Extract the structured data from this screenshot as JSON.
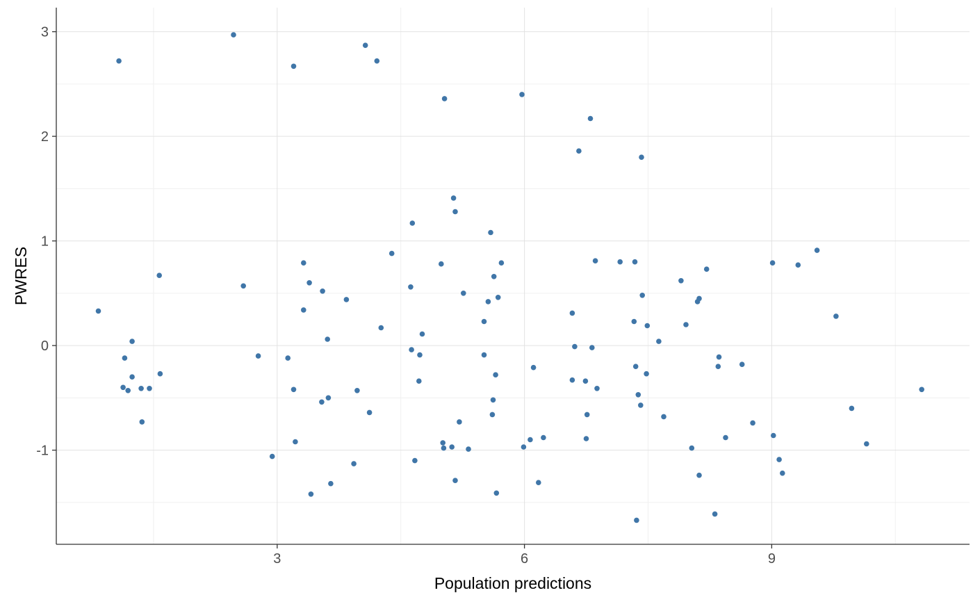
{
  "chart_data": {
    "type": "scatter",
    "title": "",
    "xlabel": "Population predictions",
    "ylabel": "PWRES",
    "xlim": [
      0.32,
      11.4
    ],
    "ylim": [
      -1.9,
      3.23
    ],
    "grid": true,
    "legend": false,
    "x_major_ticks": [
      {
        "v": 3,
        "label": "3"
      },
      {
        "v": 6,
        "label": "6"
      },
      {
        "v": 9,
        "label": "9"
      }
    ],
    "x_minor_ticks": [
      1.5,
      4.5,
      7.5,
      10.5
    ],
    "y_major_ticks": [
      {
        "v": -1,
        "label": "-1"
      },
      {
        "v": 0,
        "label": "0"
      },
      {
        "v": 1,
        "label": "1"
      },
      {
        "v": 2,
        "label": "2"
      },
      {
        "v": 3,
        "label": "3"
      }
    ],
    "y_minor_ticks": [
      -1.5,
      -0.5,
      0.5,
      1.5,
      2.5
    ],
    "styles": {
      "point_color": "#4076a8",
      "major_grid_color": "#e2e2e2",
      "minor_grid_color": "#f0f0f0",
      "axis_line_color": "#333333",
      "tick_label_color": "#4d4d4d",
      "title_color": "#000000",
      "background": "#ffffff"
    },
    "points": [
      [
        2.47,
        2.97
      ],
      [
        1.08,
        2.72
      ],
      [
        3.2,
        2.67
      ],
      [
        3.32,
        0.79
      ],
      [
        4.07,
        2.87
      ],
      [
        4.21,
        2.72
      ],
      [
        5.03,
        2.36
      ],
      [
        5.97,
        2.4
      ],
      [
        6.8,
        2.17
      ],
      [
        6.66,
        1.86
      ],
      [
        7.42,
        1.8
      ],
      [
        5.14,
        1.41
      ],
      [
        5.16,
        1.28
      ],
      [
        4.64,
        1.17
      ],
      [
        5.59,
        1.08
      ],
      [
        4.39,
        0.88
      ],
      [
        4.99,
        0.78
      ],
      [
        5.72,
        0.79
      ],
      [
        6.86,
        0.81
      ],
      [
        7.16,
        0.8
      ],
      [
        7.34,
        0.8
      ],
      [
        9.55,
        0.91
      ],
      [
        9.01,
        0.79
      ],
      [
        9.32,
        0.77
      ],
      [
        8.21,
        0.73
      ],
      [
        1.57,
        0.67
      ],
      [
        2.59,
        0.57
      ],
      [
        3.39,
        0.6
      ],
      [
        3.55,
        0.52
      ],
      [
        3.84,
        0.44
      ],
      [
        3.32,
        0.34
      ],
      [
        0.83,
        0.33
      ],
      [
        1.24,
        0.04
      ],
      [
        2.77,
        -0.1
      ],
      [
        3.13,
        -0.12
      ],
      [
        1.15,
        -0.12
      ],
      [
        3.2,
        -0.42
      ],
      [
        1.24,
        -0.3
      ],
      [
        1.13,
        -0.4
      ],
      [
        1.19,
        -0.43
      ],
      [
        1.35,
        -0.41
      ],
      [
        1.45,
        -0.41
      ],
      [
        1.58,
        -0.27
      ],
      [
        1.36,
        -0.73
      ],
      [
        2.94,
        -1.06
      ],
      [
        3.93,
        -1.13
      ],
      [
        3.65,
        -1.32
      ],
      [
        3.41,
        -1.42
      ],
      [
        3.61,
        0.06
      ],
      [
        3.97,
        -0.43
      ],
      [
        3.54,
        -0.54
      ],
      [
        3.62,
        -0.5
      ],
      [
        3.22,
        -0.92
      ],
      [
        5.63,
        0.66
      ],
      [
        4.62,
        0.56
      ],
      [
        5.26,
        0.5
      ],
      [
        5.68,
        0.46
      ],
      [
        5.56,
        0.42
      ],
      [
        6.58,
        0.31
      ],
      [
        5.51,
        0.23
      ],
      [
        4.26,
        0.17
      ],
      [
        4.76,
        0.11
      ],
      [
        4.63,
        -0.04
      ],
      [
        4.73,
        -0.09
      ],
      [
        4.72,
        -0.34
      ],
      [
        5.51,
        -0.09
      ],
      [
        5.65,
        -0.28
      ],
      [
        7.43,
        0.48
      ],
      [
        7.33,
        0.23
      ],
      [
        7.49,
        0.19
      ],
      [
        7.63,
        0.04
      ],
      [
        7.35,
        -0.2
      ],
      [
        7.48,
        -0.27
      ],
      [
        7.38,
        -0.47
      ],
      [
        7.41,
        -0.57
      ],
      [
        7.69,
        -0.68
      ],
      [
        7.36,
        -1.67
      ],
      [
        6.11,
        -0.21
      ],
      [
        6.58,
        -0.33
      ],
      [
        6.74,
        -0.34
      ],
      [
        6.88,
        -0.41
      ],
      [
        6.76,
        -0.66
      ],
      [
        6.07,
        -0.9
      ],
      [
        6.23,
        -0.88
      ],
      [
        5.99,
        -0.97
      ],
      [
        6.17,
        -1.31
      ],
      [
        6.61,
        -0.01
      ],
      [
        6.82,
        -0.02
      ],
      [
        6.75,
        -0.89
      ],
      [
        5.01,
        -0.93
      ],
      [
        5.02,
        -0.98
      ],
      [
        5.12,
        -0.97
      ],
      [
        5.32,
        -0.99
      ],
      [
        4.67,
        -1.1
      ],
      [
        5.16,
        -1.29
      ],
      [
        5.66,
        -1.41
      ],
      [
        4.12,
        -0.64
      ],
      [
        5.21,
        -0.73
      ],
      [
        5.62,
        -0.52
      ],
      [
        5.61,
        -0.66
      ],
      [
        7.9,
        0.62
      ],
      [
        8.12,
        0.45
      ],
      [
        8.1,
        0.42
      ],
      [
        7.96,
        0.2
      ],
      [
        9.78,
        0.28
      ],
      [
        8.36,
        -0.11
      ],
      [
        8.35,
        -0.2
      ],
      [
        8.64,
        -0.18
      ],
      [
        10.82,
        -0.42
      ],
      [
        9.97,
        -0.6
      ],
      [
        8.77,
        -0.74
      ],
      [
        9.02,
        -0.86
      ],
      [
        8.44,
        -0.88
      ],
      [
        8.03,
        -0.98
      ],
      [
        10.15,
        -0.94
      ],
      [
        9.09,
        -1.09
      ],
      [
        8.12,
        -1.24
      ],
      [
        9.13,
        -1.22
      ],
      [
        8.31,
        -1.61
      ]
    ]
  }
}
